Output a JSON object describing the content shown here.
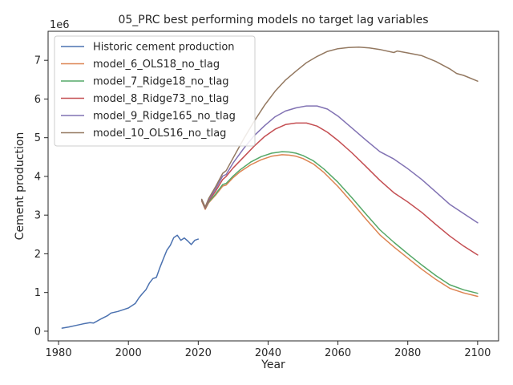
{
  "chart_data": {
    "type": "line",
    "title": "05_PRC best performing models no target lag variables",
    "xlabel": "Year",
    "ylabel": "Cement production",
    "y_multiplier_label": "1e6",
    "xlim": [
      1977,
      2106
    ],
    "ylim": [
      -0.25,
      7.75
    ],
    "xticks": [
      1980,
      2000,
      2020,
      2040,
      2060,
      2080,
      2100
    ],
    "yticks": [
      0,
      1,
      2,
      3,
      4,
      5,
      6,
      7
    ],
    "grid": false,
    "legend_position": "top-left",
    "series": [
      {
        "name": "Historic cement production",
        "color": "#4c72b0",
        "x": [
          1981,
          1983,
          1985,
          1987,
          1989,
          1990,
          1992,
          1994,
          1995,
          1997,
          1999,
          2000,
          2002,
          2003,
          2004,
          2005,
          2006,
          2007,
          2008,
          2009,
          2010,
          2011,
          2012,
          2013,
          2014,
          2015,
          2016,
          2017,
          2018,
          2019,
          2020
        ],
        "y": [
          0.08,
          0.11,
          0.15,
          0.19,
          0.22,
          0.21,
          0.31,
          0.4,
          0.47,
          0.51,
          0.57,
          0.6,
          0.72,
          0.86,
          0.97,
          1.07,
          1.24,
          1.36,
          1.39,
          1.64,
          1.87,
          2.09,
          2.22,
          2.42,
          2.48,
          2.35,
          2.41,
          2.33,
          2.24,
          2.35,
          2.38
        ]
      },
      {
        "name": "model_6_OLS18_no_tlag",
        "color": "#dd8452",
        "x": [
          2021,
          2022,
          2023,
          2025,
          2027,
          2028,
          2030,
          2032,
          2035,
          2038,
          2041,
          2044,
          2046,
          2048,
          2050,
          2053,
          2056,
          2060,
          2064,
          2068,
          2072,
          2076,
          2080,
          2084,
          2088,
          2092,
          2096,
          2100
        ],
        "y": [
          3.36,
          3.15,
          3.32,
          3.52,
          3.75,
          3.78,
          3.97,
          4.12,
          4.3,
          4.43,
          4.52,
          4.56,
          4.55,
          4.52,
          4.46,
          4.32,
          4.1,
          3.74,
          3.33,
          2.9,
          2.49,
          2.18,
          1.89,
          1.6,
          1.34,
          1.11,
          0.99,
          0.9
        ]
      },
      {
        "name": "model_7_Ridge18_no_tlag",
        "color": "#55a868",
        "x": [
          2021,
          2022,
          2023,
          2025,
          2027,
          2028,
          2030,
          2032,
          2035,
          2038,
          2041,
          2044,
          2046,
          2048,
          2050,
          2053,
          2056,
          2060,
          2064,
          2068,
          2072,
          2076,
          2080,
          2084,
          2088,
          2092,
          2096,
          2100
        ],
        "y": [
          3.38,
          3.17,
          3.34,
          3.55,
          3.79,
          3.82,
          4.01,
          4.17,
          4.37,
          4.51,
          4.6,
          4.64,
          4.63,
          4.6,
          4.54,
          4.4,
          4.19,
          3.85,
          3.45,
          3.03,
          2.62,
          2.3,
          2.0,
          1.71,
          1.44,
          1.2,
          1.07,
          0.98
        ]
      },
      {
        "name": "model_8_Ridge73_no_tlag",
        "color": "#c44e52",
        "x": [
          2021,
          2022,
          2023,
          2025,
          2027,
          2028,
          2030,
          2033,
          2036,
          2039,
          2042,
          2045,
          2048,
          2051,
          2054,
          2057,
          2060,
          2064,
          2068,
          2072,
          2076,
          2080,
          2084,
          2088,
          2092,
          2096,
          2100
        ],
        "y": [
          3.39,
          3.18,
          3.37,
          3.62,
          3.92,
          4.0,
          4.22,
          4.5,
          4.78,
          5.03,
          5.22,
          5.34,
          5.38,
          5.38,
          5.3,
          5.14,
          4.93,
          4.61,
          4.26,
          3.9,
          3.58,
          3.34,
          3.07,
          2.76,
          2.46,
          2.2,
          1.97
        ]
      },
      {
        "name": "model_9_Ridge165_no_tlag",
        "color": "#8172b3",
        "x": [
          2021,
          2022,
          2023,
          2025,
          2027,
          2028,
          2030,
          2033,
          2036,
          2039,
          2042,
          2045,
          2048,
          2051,
          2054,
          2057,
          2060,
          2064,
          2068,
          2072,
          2076,
          2080,
          2084,
          2088,
          2092,
          2096,
          2100
        ],
        "y": [
          3.4,
          3.2,
          3.4,
          3.68,
          4.01,
          4.05,
          4.35,
          4.72,
          5.05,
          5.31,
          5.54,
          5.69,
          5.77,
          5.82,
          5.82,
          5.74,
          5.56,
          5.25,
          4.94,
          4.64,
          4.45,
          4.2,
          3.92,
          3.6,
          3.28,
          3.04,
          2.8
        ]
      },
      {
        "name": "model_10_OLS16_no_tlag",
        "color": "#937860",
        "x": [
          2021,
          2022,
          2023,
          2025,
          2027,
          2028,
          2030,
          2033,
          2036,
          2039,
          2042,
          2045,
          2048,
          2051,
          2054,
          2057,
          2060,
          2063,
          2066,
          2069,
          2072,
          2076,
          2077,
          2080,
          2084,
          2088,
          2092,
          2094,
          2096,
          2100
        ],
        "y": [
          3.41,
          3.21,
          3.43,
          3.74,
          4.08,
          4.15,
          4.48,
          4.97,
          5.42,
          5.84,
          6.2,
          6.49,
          6.72,
          6.94,
          7.1,
          7.23,
          7.3,
          7.33,
          7.34,
          7.32,
          7.28,
          7.2,
          7.24,
          7.19,
          7.12,
          6.97,
          6.78,
          6.66,
          6.61,
          6.46
        ]
      }
    ]
  }
}
